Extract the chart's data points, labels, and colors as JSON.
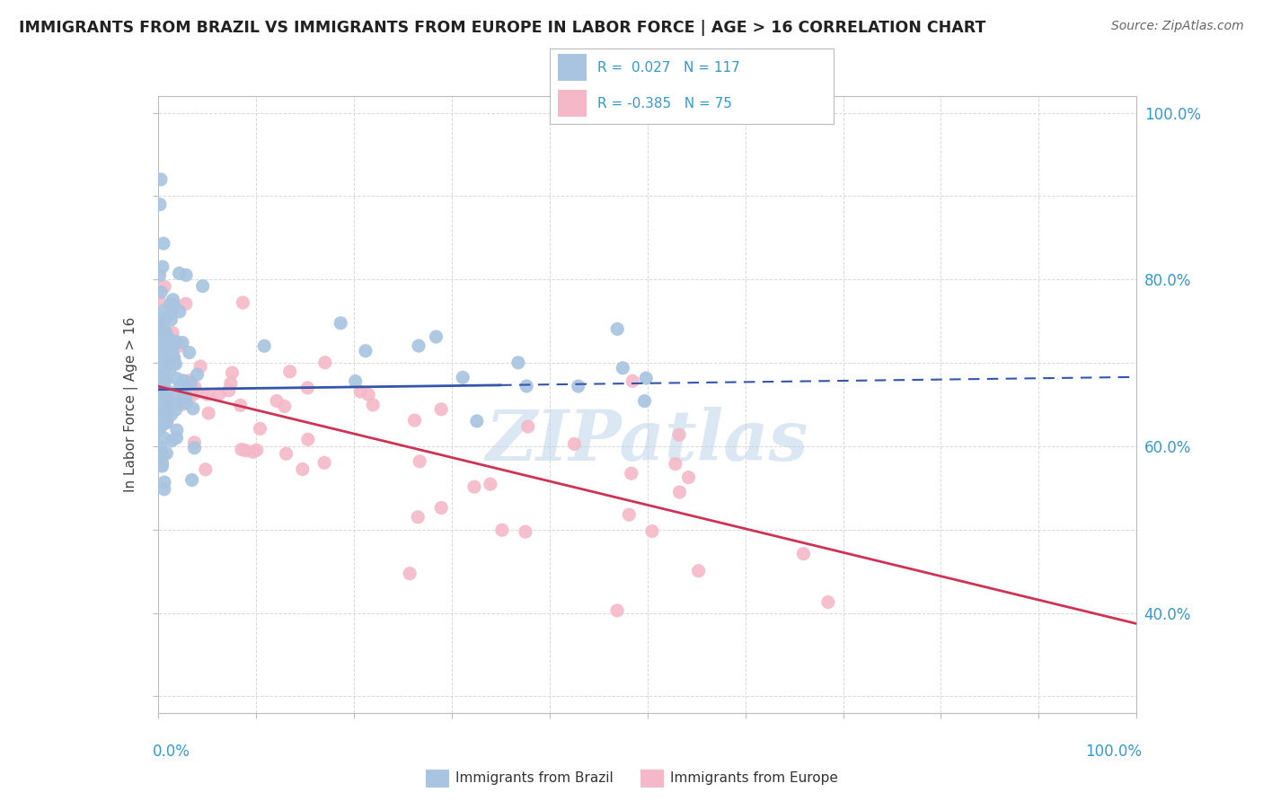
{
  "title": "IMMIGRANTS FROM BRAZIL VS IMMIGRANTS FROM EUROPE IN LABOR FORCE | AGE > 16 CORRELATION CHART",
  "source": "Source: ZipAtlas.com",
  "ylabel": "In Labor Force | Age > 16",
  "legend_brazil_text": "R =  0.027   N = 117",
  "legend_europe_text": "R = -0.385   N = 75",
  "legend_label_brazil": "Immigrants from Brazil",
  "legend_label_europe": "Immigrants from Europe",
  "brazil_color": "#a8c4e0",
  "europe_color": "#f4b8c8",
  "brazil_line_color": "#3355aa",
  "europe_line_color": "#cc3355",
  "brazil_line_solid_end": 0.35,
  "watermark": "ZIPatlas",
  "R_brazil": 0.027,
  "N_brazil": 117,
  "R_europe": -0.385,
  "N_europe": 75,
  "xlim": [
    0.0,
    1.0
  ],
  "ylim": [
    0.28,
    1.02
  ],
  "right_yticks": [
    0.4,
    0.6,
    0.8,
    1.0
  ],
  "right_yticklabels": [
    "40.0%",
    "60.0%",
    "80.0%",
    "100.0%"
  ],
  "bg_color": "#ffffff",
  "grid_color": "#d0d0d0",
  "title_color": "#222222",
  "source_color": "#666666",
  "axis_label_color": "#3399cc"
}
